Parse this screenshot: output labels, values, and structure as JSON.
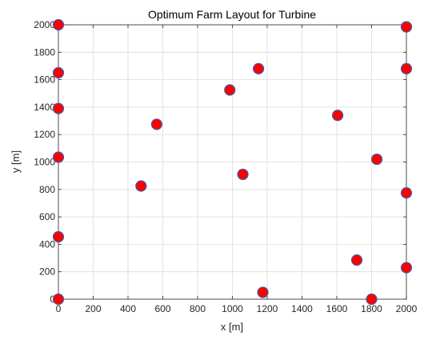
{
  "chart_data": {
    "type": "scatter",
    "title": "Optimum Farm Layout for Turbine",
    "xlabel": "x [m]",
    "ylabel": "y [m]",
    "xlim": [
      0,
      2000
    ],
    "ylim": [
      0,
      2000
    ],
    "xticks": [
      0,
      200,
      400,
      600,
      800,
      1000,
      1200,
      1400,
      1600,
      1800,
      2000
    ],
    "yticks": [
      0,
      200,
      400,
      600,
      800,
      1000,
      1200,
      1400,
      1600,
      1800,
      2000
    ],
    "grid": true,
    "legend": "none",
    "marker_face_color": "#ff0000",
    "marker_edge_color": "#3a5fa8",
    "points": [
      {
        "x": 0,
        "y": 2000
      },
      {
        "x": 0,
        "y": 1650
      },
      {
        "x": 0,
        "y": 1390
      },
      {
        "x": 0,
        "y": 1035
      },
      {
        "x": 0,
        "y": 455
      },
      {
        "x": 0,
        "y": 0
      },
      {
        "x": 565,
        "y": 1275
      },
      {
        "x": 475,
        "y": 825
      },
      {
        "x": 985,
        "y": 1525
      },
      {
        "x": 1150,
        "y": 1680
      },
      {
        "x": 1060,
        "y": 910
      },
      {
        "x": 1175,
        "y": 50
      },
      {
        "x": 1605,
        "y": 1340
      },
      {
        "x": 1830,
        "y": 1020
      },
      {
        "x": 1715,
        "y": 285
      },
      {
        "x": 1800,
        "y": 0
      },
      {
        "x": 2000,
        "y": 1985
      },
      {
        "x": 2000,
        "y": 1680
      },
      {
        "x": 2000,
        "y": 775
      },
      {
        "x": 2000,
        "y": 230
      }
    ]
  }
}
